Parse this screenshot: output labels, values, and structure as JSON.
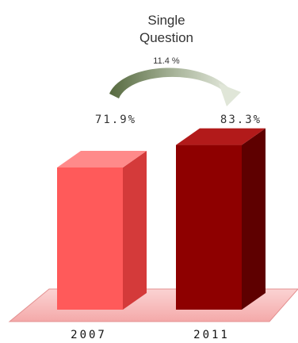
{
  "chart_data": {
    "type": "bar",
    "title_line1": "Single",
    "title_line2": "Question",
    "change_label": "11.4 %",
    "categories": [
      "2007",
      "2011"
    ],
    "values": [
      71.9,
      83.3
    ],
    "value_labels": [
      "71.9%",
      "83.3%"
    ],
    "ylim": [
      0,
      100
    ],
    "colors": {
      "bar_2007_front": "#ff5a5a",
      "bar_2007_side": "#d43a3a",
      "bar_2007_top": "#ff8a8a",
      "bar_2011_front": "#8e0000",
      "bar_2011_side": "#5e0000",
      "bar_2011_top": "#b21a1a",
      "floor": "#f7b8b8",
      "arrow": "#6b7f5a"
    }
  }
}
